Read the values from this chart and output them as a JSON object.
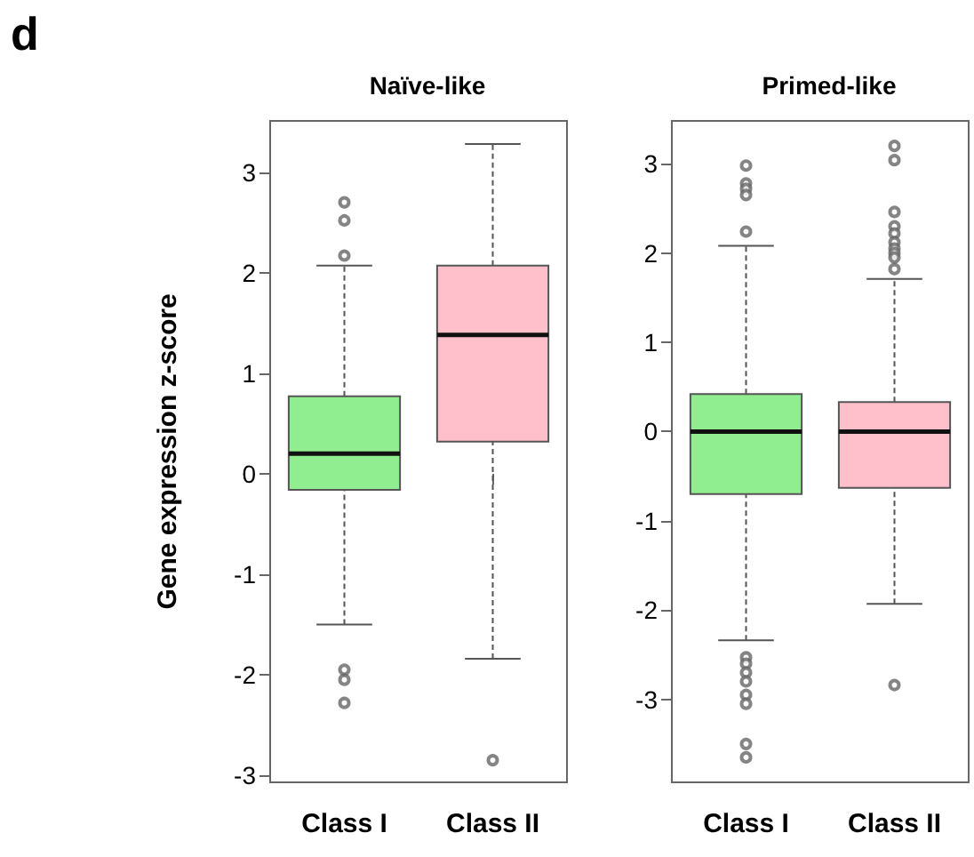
{
  "chart_data": [
    {
      "type": "box",
      "title": "Naïve-like",
      "ylabel": "Gene expression z-score",
      "annotations": [
        "d"
      ],
      "categories": [
        "Class I",
        "Class II"
      ],
      "colors": [
        "#90ee90",
        "#ffc0cb"
      ],
      "boxes": [
        {
          "low": -1.5,
          "q1": -0.16,
          "median": 0.2,
          "q3": 0.77,
          "high": 2.07,
          "outliers": [
            2.7,
            2.52,
            2.17,
            -1.95,
            -2.05,
            -2.28
          ]
        },
        {
          "low": -1.84,
          "q1": 0.32,
          "median": 1.38,
          "q3": 2.07,
          "high": 3.28,
          "outliers": [
            -2.85
          ]
        }
      ],
      "ylim": [
        -3.07,
        3.51
      ],
      "yticks": [
        -3,
        -2,
        -1,
        0,
        1,
        2,
        3
      ],
      "grid": false
    },
    {
      "type": "box",
      "title": "Primed-like",
      "categories": [
        "Class I",
        "Class II"
      ],
      "colors": [
        "#90ee90",
        "#ffc0cb"
      ],
      "boxes": [
        {
          "low": -2.34,
          "q1": -0.7,
          "median": 0,
          "q3": 0.42,
          "high": 2.08,
          "outliers": [
            2.98,
            2.78,
            2.72,
            2.65,
            2.24,
            -2.53,
            -2.6,
            -2.7,
            -2.8,
            -2.95,
            -3.05,
            -3.5,
            -3.65
          ]
        },
        {
          "low": -1.93,
          "q1": -0.63,
          "median": 0,
          "q3": 0.33,
          "high": 1.71,
          "outliers": [
            3.2,
            3.04,
            2.46,
            2.3,
            2.22,
            2.12,
            2.05,
            2.0,
            1.95,
            1.82,
            -2.84
          ]
        }
      ],
      "ylim": [
        -3.93,
        3.48
      ],
      "yticks": [
        -3,
        -2,
        -1,
        0,
        1,
        2,
        3
      ],
      "grid": false
    }
  ]
}
